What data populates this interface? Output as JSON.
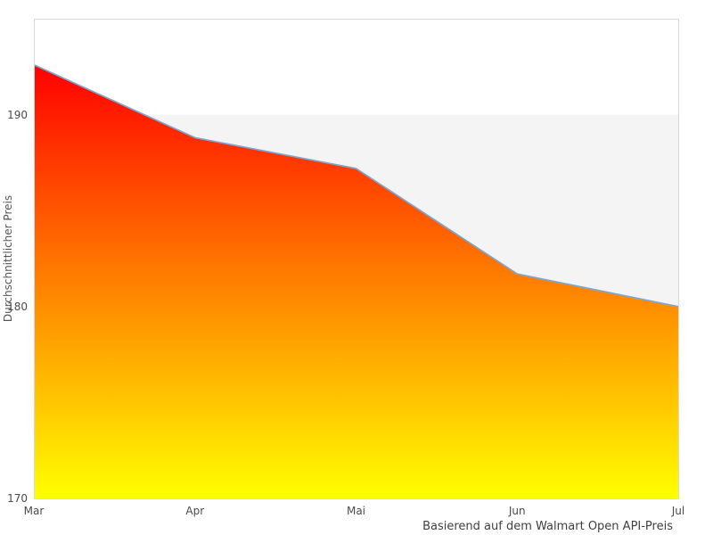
{
  "chart_data": {
    "type": "area",
    "title": "",
    "categories": [
      "Mar",
      "Apr",
      "Mai",
      "Jun",
      "Jul"
    ],
    "values": [
      192.6,
      188.8,
      187.2,
      181.7,
      180.0
    ],
    "series_name": "Durchschnittlicher Preis",
    "xlabel": "",
    "ylabel": "Durchschnittlicher Preis",
    "caption": "Basierend auf dem Walmart Open API-Preis",
    "yticks": [
      170,
      180,
      190
    ],
    "ylim": [
      170,
      195
    ],
    "grid": "horizontal alternating band",
    "band": {
      "from": 180,
      "to": 190,
      "color": "#f4f4f4"
    },
    "legend_position": "none",
    "colors": {
      "area_gradient_top": "#ff0000",
      "area_gradient_bottom": "#ffff00",
      "line": "#7da7d0",
      "plot_border": "#d9d9d9",
      "tick_text": "#4a4a4a",
      "background": "#ffffff"
    }
  }
}
